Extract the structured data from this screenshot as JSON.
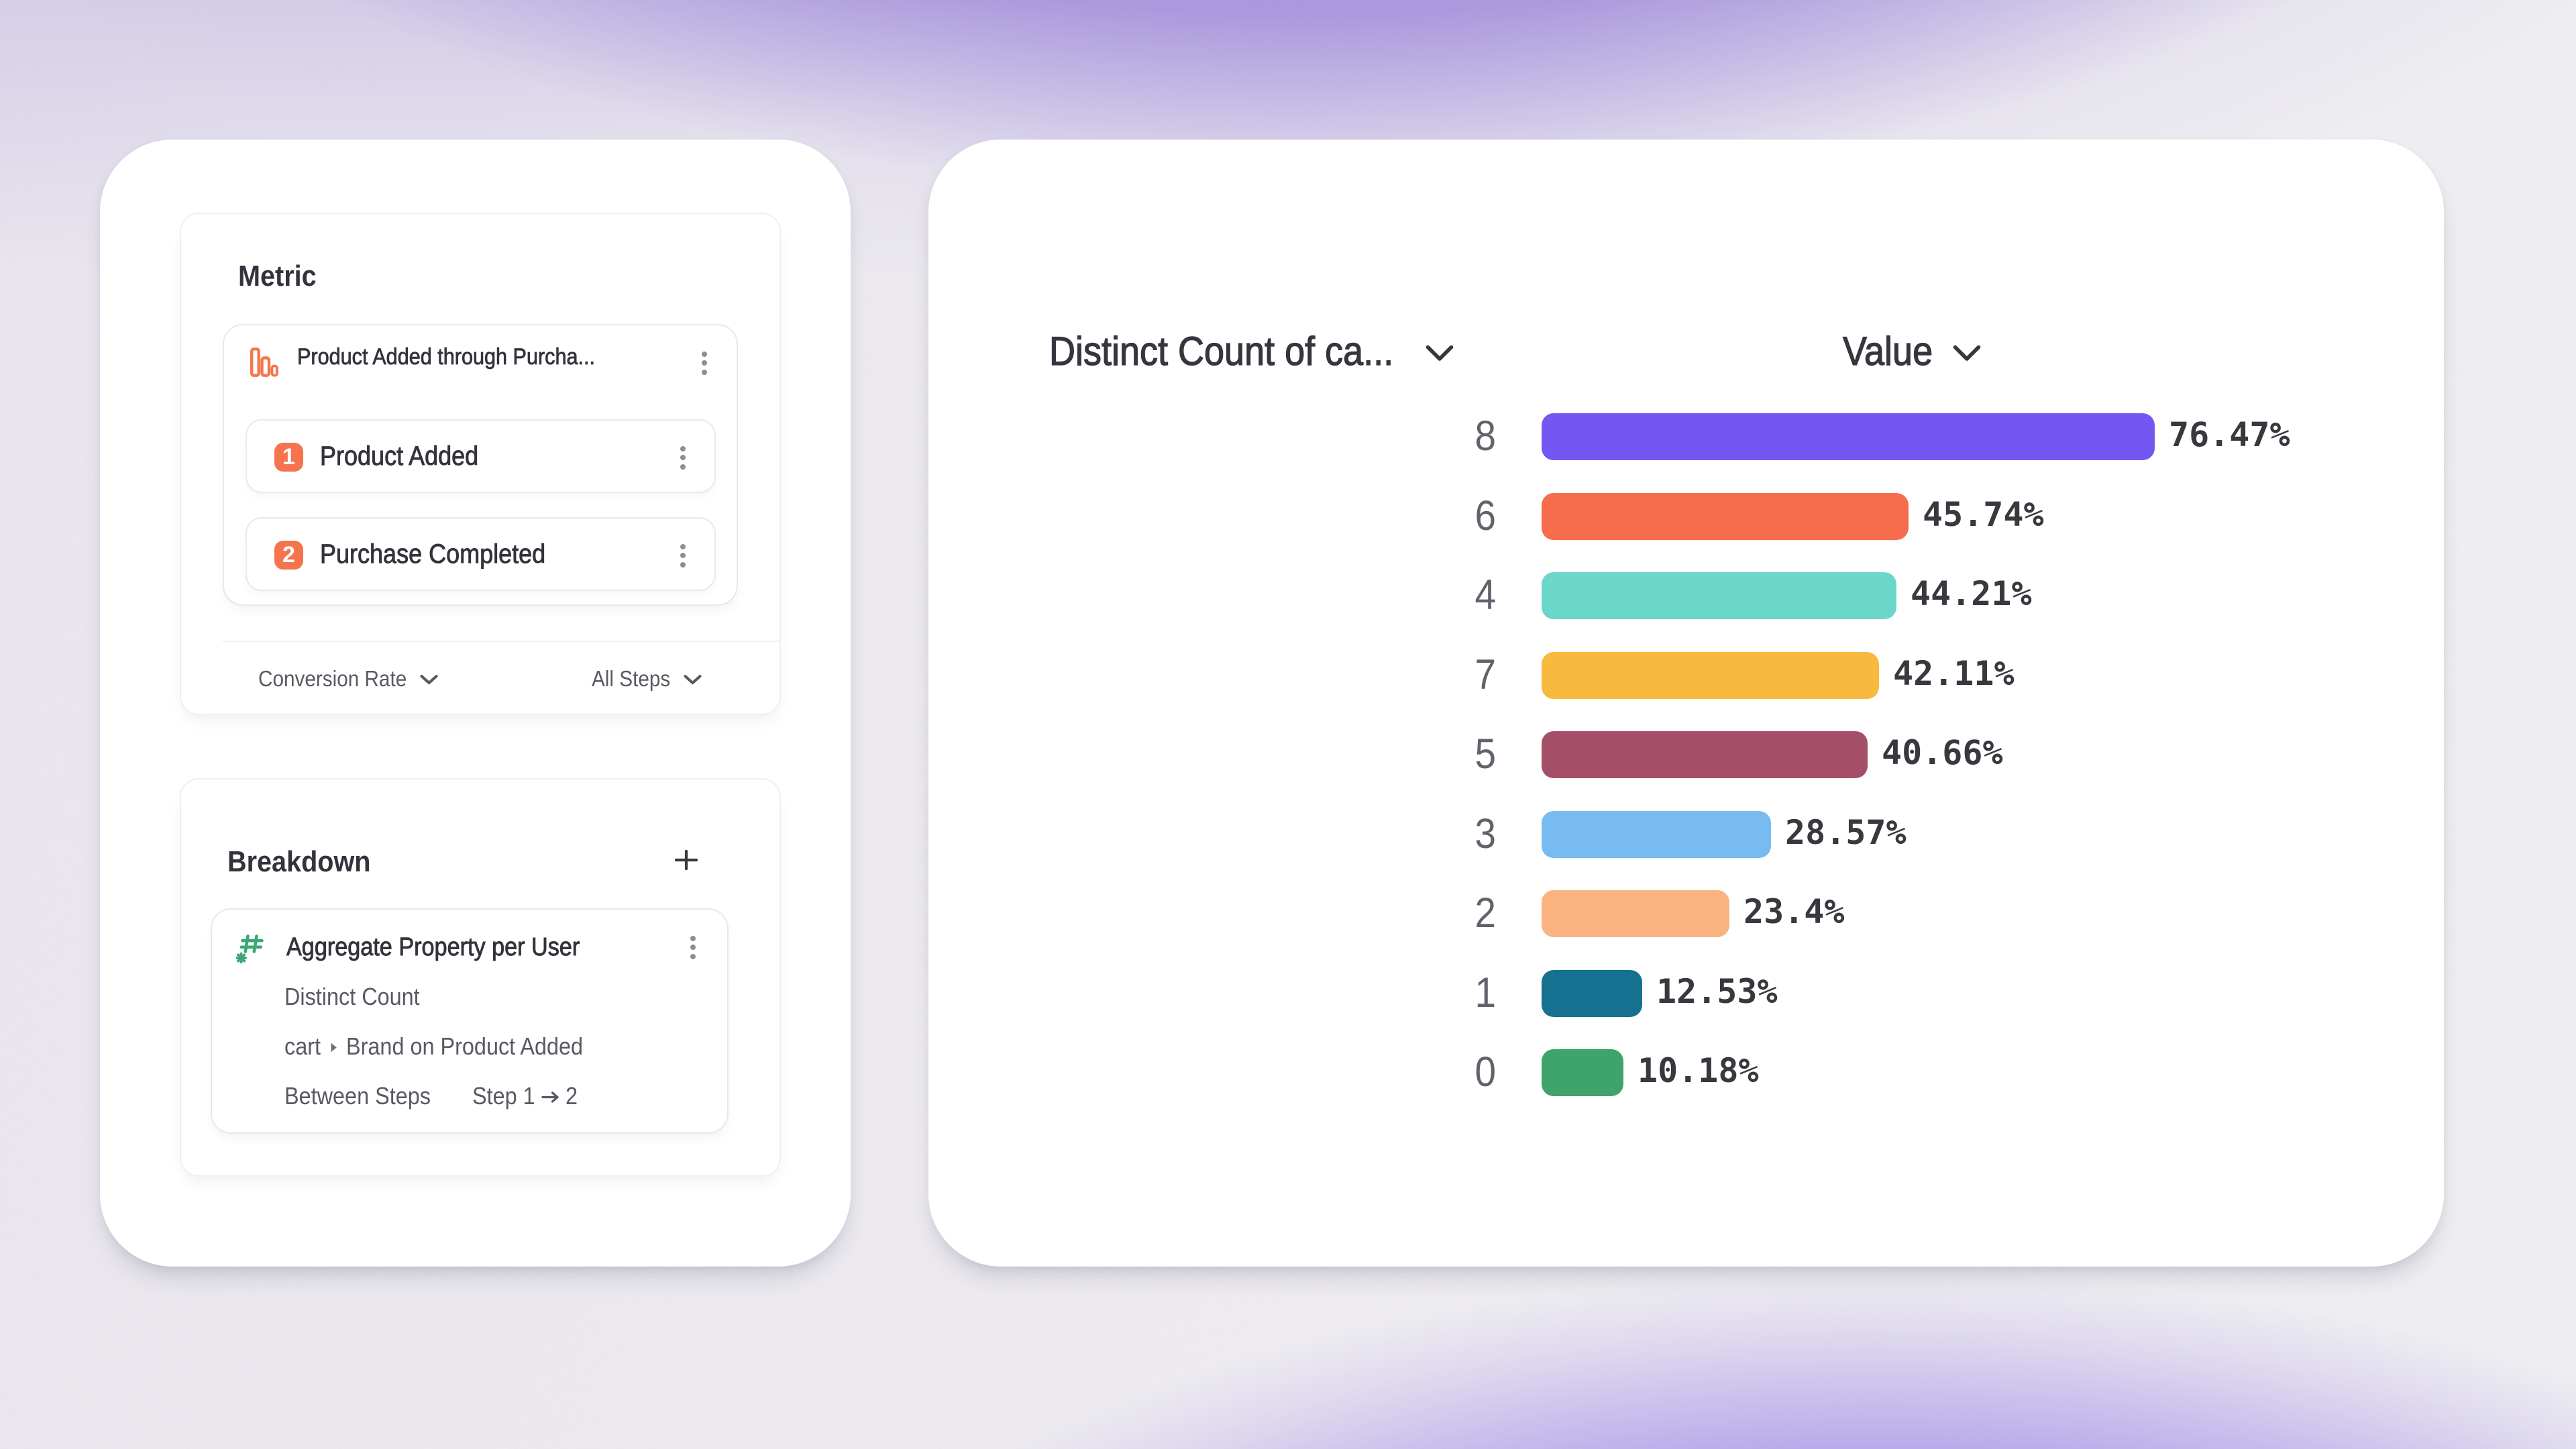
{
  "left_panel": {
    "metric_section": {
      "title": "Metric",
      "funnel": {
        "title": "Product Added through Purcha...",
        "icon": "funnel-bars-icon",
        "steps": [
          {
            "number": "1",
            "label": "Product Added"
          },
          {
            "number": "2",
            "label": "Purchase Completed"
          }
        ],
        "footer": {
          "measurement": "Conversion Rate",
          "steps_scope": "All Steps"
        }
      }
    },
    "breakdown_section": {
      "title": "Breakdown",
      "add_button": "+",
      "property": {
        "title": "Aggregate Property per User",
        "icon": "hash-aggregate-icon",
        "aggregation": "Distinct Count",
        "property_prefix": "cart",
        "property_name": "Brand on Product Added",
        "between_steps_label": "Between Steps",
        "step_range_from": "Step 1",
        "step_range_to": "2",
        "step_range": "Step 1 → 2"
      }
    }
  },
  "chart_panel": {
    "category_column_header": "Distinct Count of ca...",
    "value_column_header": "Value"
  },
  "chart_data": {
    "type": "bar",
    "orientation": "horizontal",
    "title": "",
    "xlabel": "Value",
    "ylabel": "Distinct Count of ca...",
    "categories": [
      "8",
      "6",
      "4",
      "7",
      "5",
      "3",
      "2",
      "1",
      "0"
    ],
    "values": [
      76.47,
      45.74,
      44.21,
      42.11,
      40.66,
      28.57,
      23.4,
      12.53,
      10.18
    ],
    "value_labels": [
      "76.47%",
      "45.74%",
      "44.21%",
      "42.11%",
      "40.66%",
      "28.57%",
      "23.4%",
      "12.53%",
      "10.18%"
    ],
    "bar_colors": [
      "#7456F2",
      "#F76C4D",
      "#6BD6CA",
      "#F7BA3E",
      "#A44E68",
      "#78BBF0",
      "#FAB381",
      "#16708F",
      "#3EA46B"
    ],
    "xlim": [
      0,
      100
    ],
    "legend": false,
    "grid": false,
    "sorted_descending": true
  },
  "colors": {
    "accent_orange": "#F5744E",
    "accent_green": "#3BA873",
    "text_primary": "#34323B",
    "text_secondary": "#55525C",
    "card_background": "#FFFFFF"
  }
}
